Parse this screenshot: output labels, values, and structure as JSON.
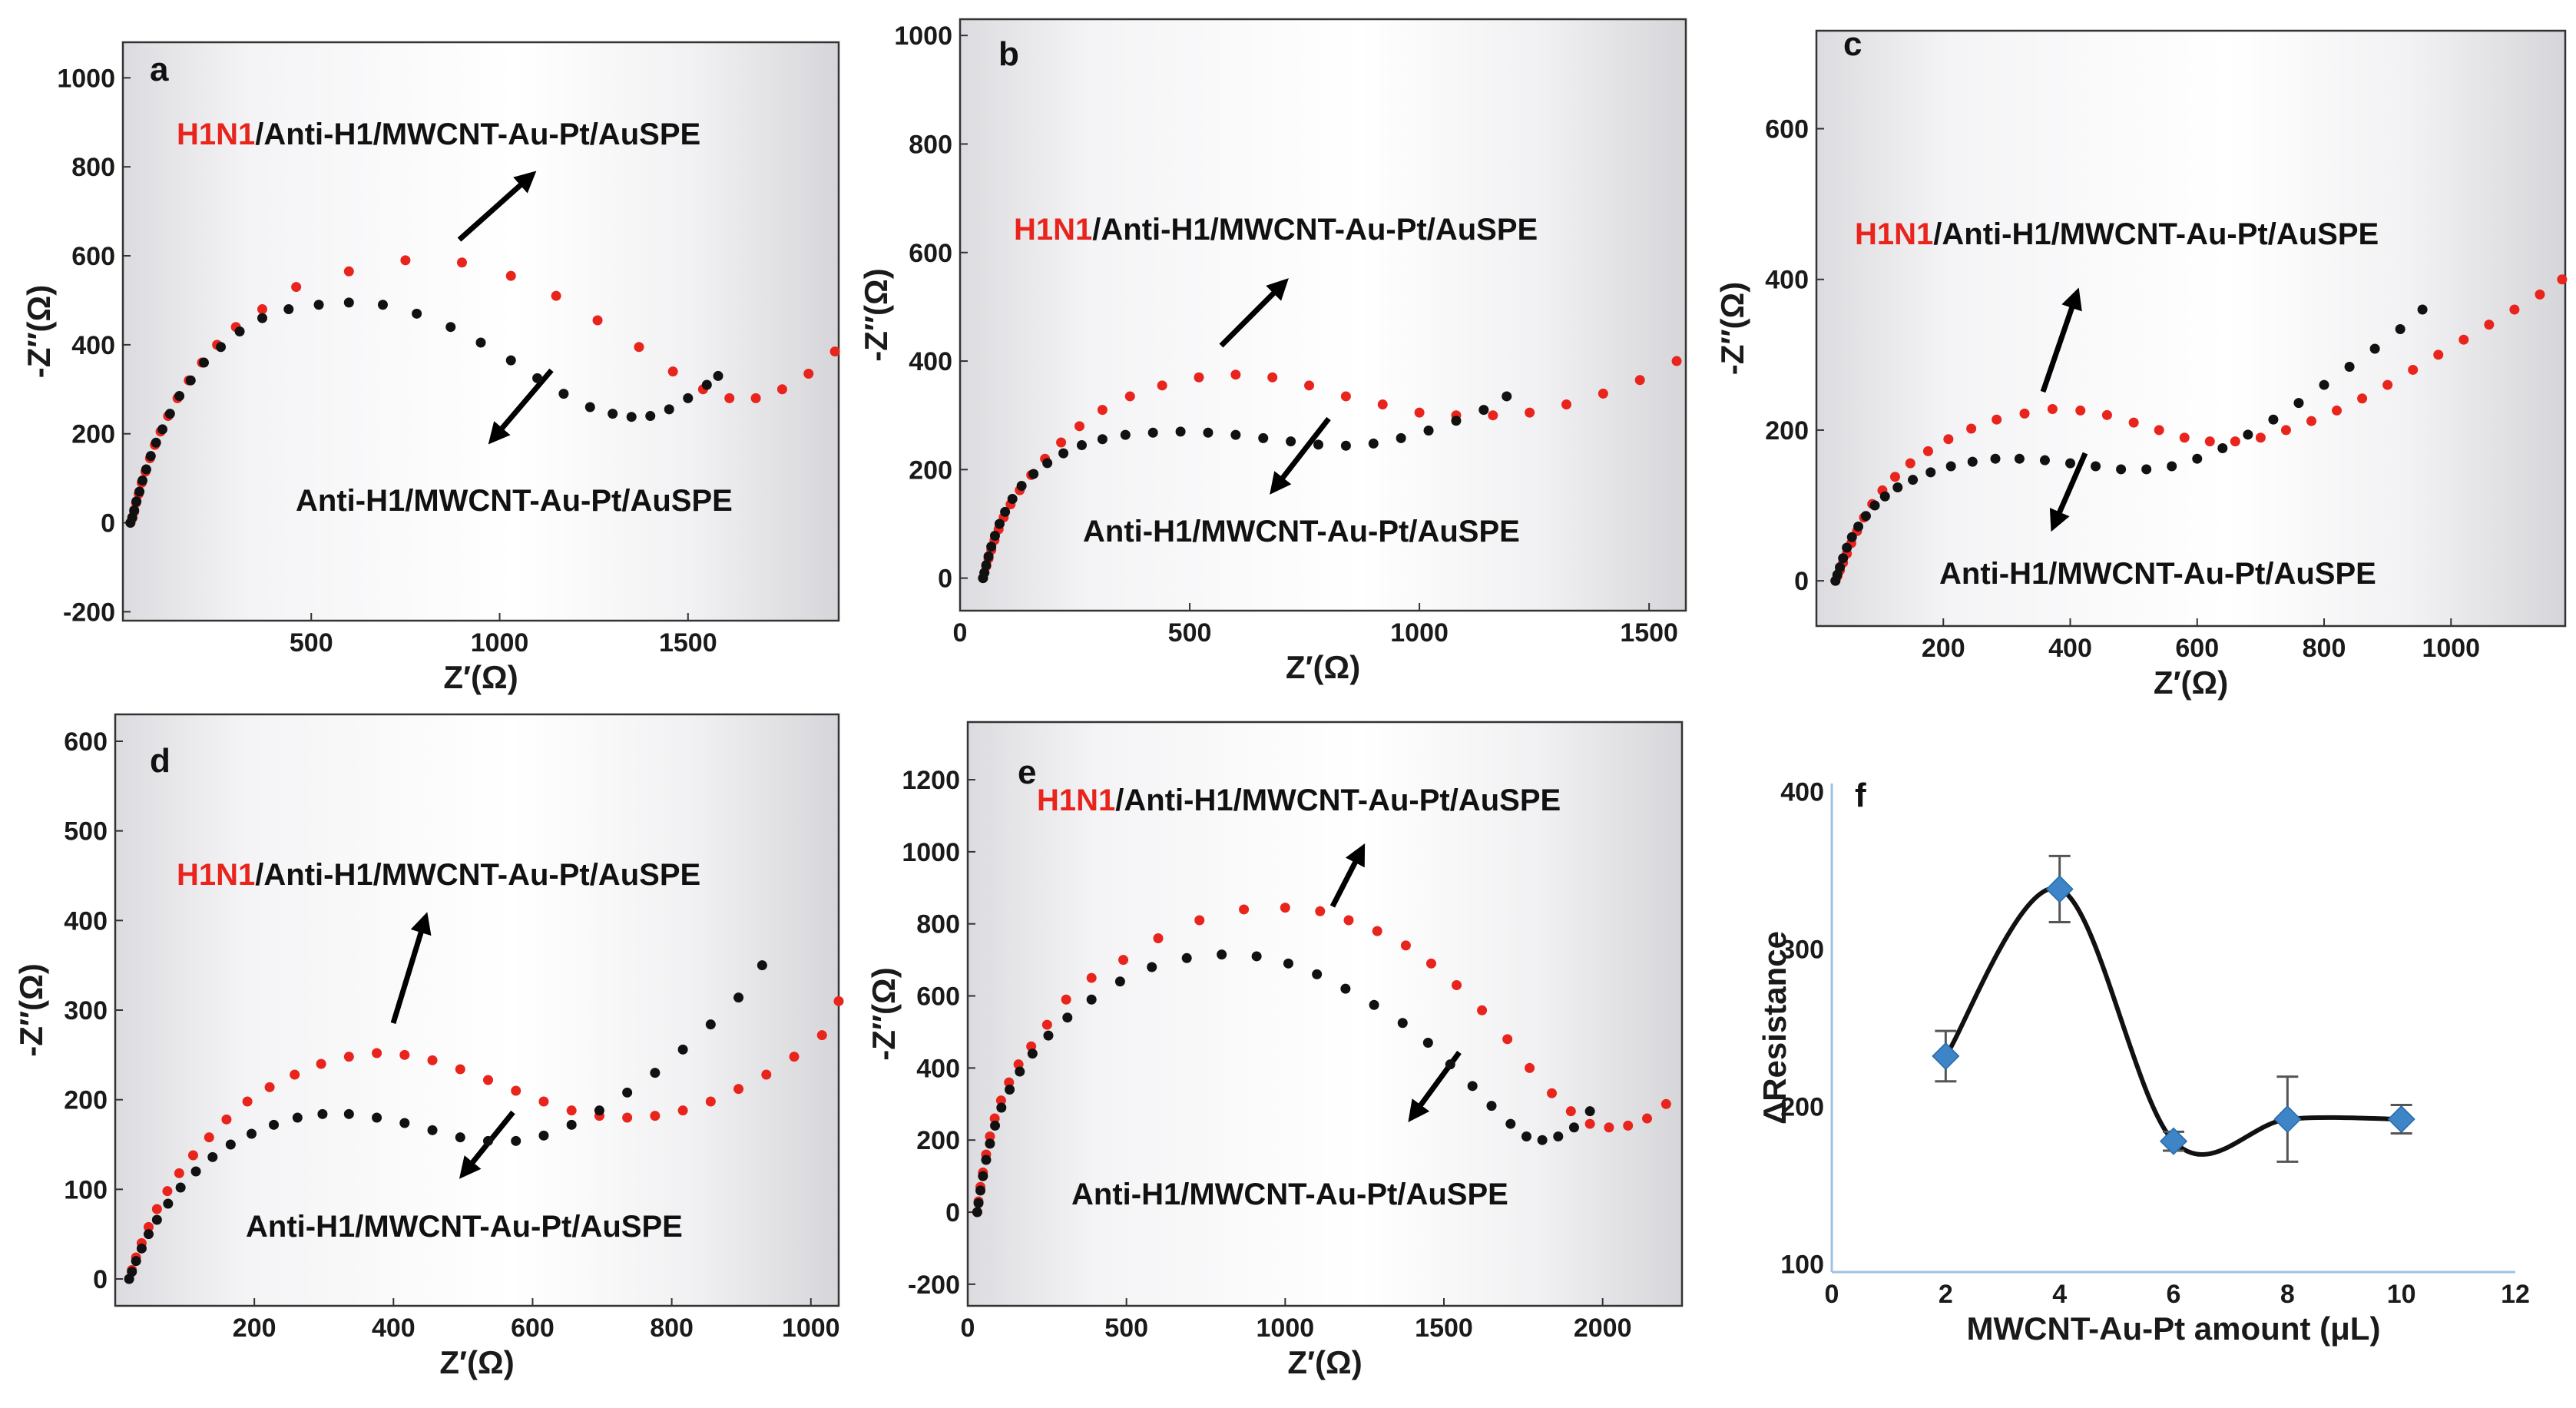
{
  "chart_data": [
    {
      "id": "a",
      "type": "scatter",
      "panel_label": "a",
      "xlabel": "Z′(Ω)",
      "ylabel": "-Z″(Ω)",
      "xlim": [
        0,
        1900
      ],
      "ylim": [
        -220,
        1080
      ],
      "xticks": [
        500,
        1000,
        1500
      ],
      "yticks": [
        -200,
        0,
        200,
        400,
        600,
        800,
        1000
      ],
      "annotations": [
        {
          "prefix": "H1N1",
          "suffix": "/Anti-H1/MWCNT-Au-Pt/AuSPE"
        },
        {
          "prefix": "",
          "suffix": "Anti-H1/MWCNT-Au-Pt/AuSPE"
        }
      ],
      "series": [
        {
          "name": "H1N1/Anti-H1/MWCNT-Au-Pt/AuSPE",
          "color": "#e8241c",
          "x": [
            20,
            25,
            30,
            35,
            42,
            50,
            60,
            72,
            85,
            100,
            120,
            145,
            175,
            210,
            250,
            300,
            370,
            460,
            600,
            750,
            900,
            1030,
            1150,
            1260,
            1370,
            1460,
            1540,
            1610,
            1680,
            1750,
            1820,
            1890
          ],
          "y": [
            0,
            10,
            25,
            45,
            65,
            90,
            115,
            145,
            175,
            205,
            240,
            280,
            320,
            360,
            400,
            440,
            480,
            530,
            565,
            590,
            585,
            555,
            510,
            455,
            395,
            340,
            300,
            280,
            280,
            300,
            335,
            385
          ]
        },
        {
          "name": "Anti-H1/MWCNT-Au-Pt/AuSPE",
          "color": "#111111",
          "x": [
            20,
            25,
            30,
            36,
            44,
            52,
            62,
            74,
            88,
            105,
            125,
            150,
            180,
            215,
            260,
            310,
            370,
            440,
            520,
            600,
            690,
            780,
            870,
            950,
            1030,
            1100,
            1170,
            1240,
            1300,
            1350,
            1400,
            1450,
            1500,
            1550,
            1580
          ],
          "y": [
            0,
            12,
            28,
            48,
            70,
            95,
            120,
            150,
            180,
            210,
            245,
            285,
            320,
            360,
            395,
            430,
            460,
            480,
            490,
            495,
            490,
            470,
            440,
            405,
            365,
            325,
            290,
            260,
            245,
            238,
            240,
            255,
            280,
            310,
            330
          ]
        }
      ]
    },
    {
      "id": "b",
      "type": "scatter",
      "panel_label": "b",
      "xlabel": "Z′(Ω)",
      "ylabel": "-Z″(Ω)",
      "xlim": [
        0,
        1580
      ],
      "ylim": [
        -60,
        1030
      ],
      "xticks": [
        0,
        500,
        1000,
        1500
      ],
      "yticks": [
        0,
        200,
        400,
        600,
        800,
        1000
      ],
      "annotations": [
        {
          "prefix": "H1N1",
          "suffix": "/Anti-H1/MWCNT-Au-Pt/AuSPE"
        },
        {
          "prefix": "",
          "suffix": "Anti-H1/MWCNT-Au-Pt/AuSPE"
        }
      ],
      "series": [
        {
          "name": "H1N1/Anti-H1/MWCNT-Au-Pt/AuSPE",
          "color": "#e8241c",
          "x": [
            50,
            53,
            57,
            62,
            68,
            75,
            84,
            95,
            110,
            130,
            155,
            185,
            220,
            260,
            310,
            370,
            440,
            520,
            600,
            680,
            760,
            840,
            920,
            1000,
            1080,
            1160,
            1240,
            1320,
            1400,
            1480,
            1560
          ],
          "y": [
            0,
            10,
            22,
            36,
            52,
            70,
            90,
            112,
            136,
            162,
            190,
            220,
            250,
            280,
            310,
            335,
            355,
            370,
            375,
            370,
            355,
            335,
            320,
            305,
            300,
            300,
            305,
            320,
            340,
            365,
            400
          ]
        },
        {
          "name": "Anti-H1/MWCNT-Au-Pt/AuSPE",
          "color": "#111111",
          "x": [
            50,
            53,
            57,
            62,
            68,
            76,
            86,
            98,
            114,
            134,
            160,
            190,
            225,
            265,
            310,
            360,
            420,
            480,
            540,
            600,
            660,
            720,
            780,
            840,
            900,
            960,
            1020,
            1080,
            1140,
            1190
          ],
          "y": [
            0,
            10,
            24,
            40,
            58,
            78,
            100,
            122,
            146,
            170,
            192,
            212,
            230,
            245,
            256,
            264,
            268,
            270,
            268,
            264,
            258,
            252,
            246,
            244,
            248,
            258,
            272,
            290,
            310,
            335
          ]
        }
      ]
    },
    {
      "id": "c",
      "type": "scatter",
      "panel_label": "c",
      "xlabel": "Z′(Ω)",
      "ylabel": "-Z″(Ω)",
      "xlim": [
        0,
        1180
      ],
      "ylim": [
        -60,
        730
      ],
      "xticks": [
        200,
        400,
        600,
        800,
        1000
      ],
      "yticks": [
        0,
        200,
        400,
        600
      ],
      "annotations": [
        {
          "prefix": "H1N1",
          "suffix": "/Anti-H1/MWCNT-Au-Pt/AuSPE"
        },
        {
          "prefix": "",
          "suffix": "Anti-H1/MWCNT-Au-Pt/AuSPE"
        }
      ],
      "series": [
        {
          "name": "H1N1/Anti-H1/MWCNT-Au-Pt/AuSPE",
          "color": "#e8241c",
          "x": [
            30,
            33,
            37,
            42,
            48,
            55,
            64,
            75,
            88,
            104,
            124,
            148,
            176,
            208,
            244,
            284,
            328,
            372,
            416,
            458,
            500,
            540,
            580,
            620,
            660,
            700,
            740,
            780,
            820,
            860,
            900,
            940,
            980,
            1020,
            1060,
            1100,
            1140,
            1175
          ],
          "y": [
            0,
            6,
            14,
            24,
            36,
            50,
            66,
            84,
            102,
            120,
            138,
            156,
            172,
            188,
            202,
            214,
            222,
            228,
            226,
            220,
            210,
            200,
            190,
            185,
            185,
            190,
            200,
            212,
            226,
            242,
            260,
            280,
            300,
            320,
            340,
            360,
            380,
            400
          ]
        },
        {
          "name": "Anti-H1/MWCNT-Au-Pt/AuSPE",
          "color": "#111111",
          "x": [
            30,
            33,
            37,
            42,
            48,
            56,
            66,
            78,
            92,
            108,
            128,
            152,
            180,
            212,
            246,
            282,
            320,
            360,
            400,
            440,
            480,
            520,
            560,
            600,
            640,
            680,
            720,
            760,
            800,
            840,
            880,
            920,
            955
          ],
          "y": [
            0,
            8,
            18,
            30,
            44,
            58,
            72,
            86,
            100,
            112,
            124,
            134,
            144,
            152,
            158,
            162,
            162,
            160,
            156,
            152,
            148,
            148,
            152,
            162,
            176,
            194,
            214,
            236,
            260,
            284,
            308,
            334,
            360
          ]
        }
      ]
    },
    {
      "id": "d",
      "type": "scatter",
      "panel_label": "d",
      "xlabel": "Z′(Ω)",
      "ylabel": "-Z″(Ω)",
      "xlim": [
        0,
        1040
      ],
      "ylim": [
        -30,
        630
      ],
      "xticks": [
        200,
        400,
        600,
        800,
        1000
      ],
      "yticks": [
        0,
        100,
        200,
        300,
        400,
        500,
        600
      ],
      "annotations": [
        {
          "prefix": "H1N1",
          "suffix": "/Anti-H1/MWCNT-Au-Pt/AuSPE"
        },
        {
          "prefix": "",
          "suffix": "Anti-H1/MWCNT-Au-Pt/AuSPE"
        }
      ],
      "series": [
        {
          "name": "H1N1/Anti-H1/MWCNT-Au-Pt/AuSPE",
          "color": "#e8241c",
          "x": [
            20,
            24,
            30,
            38,
            48,
            60,
            75,
            92,
            112,
            135,
            160,
            190,
            222,
            258,
            296,
            336,
            376,
            416,
            456,
            496,
            536,
            576,
            616,
            656,
            696,
            736,
            776,
            816,
            856,
            896,
            936,
            976,
            1016,
            1040
          ],
          "y": [
            0,
            10,
            24,
            40,
            58,
            78,
            98,
            118,
            138,
            158,
            178,
            198,
            214,
            228,
            240,
            248,
            252,
            250,
            244,
            234,
            222,
            210,
            198,
            188,
            182,
            180,
            182,
            188,
            198,
            212,
            228,
            248,
            272,
            310
          ]
        },
        {
          "name": "Anti-H1/MWCNT-Au-Pt/AuSPE",
          "color": "#111111",
          "x": [
            20,
            24,
            30,
            38,
            48,
            60,
            76,
            94,
            116,
            140,
            166,
            196,
            228,
            262,
            298,
            336,
            376,
            416,
            456,
            496,
            536,
            576,
            616,
            656,
            696,
            736,
            776,
            816,
            856,
            896,
            930
          ],
          "y": [
            0,
            8,
            20,
            34,
            50,
            66,
            84,
            102,
            120,
            136,
            150,
            162,
            172,
            180,
            184,
            184,
            180,
            174,
            166,
            158,
            154,
            154,
            160,
            172,
            188,
            208,
            230,
            256,
            284,
            314,
            350
          ]
        }
      ]
    },
    {
      "id": "e",
      "type": "scatter",
      "panel_label": "e",
      "xlabel": "Z′(Ω)",
      "ylabel": "-Z″(Ω)",
      "xlim": [
        0,
        2250
      ],
      "ylim": [
        -260,
        1360
      ],
      "xticks": [
        0,
        500,
        1000,
        1500,
        2000
      ],
      "yticks": [
        -200,
        0,
        200,
        400,
        600,
        800,
        1000,
        1200
      ],
      "annotations": [
        {
          "prefix": "H1N1",
          "suffix": "/Anti-H1/MWCNT-Au-Pt/AuSPE"
        },
        {
          "prefix": "",
          "suffix": "Anti-H1/MWCNT-Au-Pt/AuSPE"
        }
      ],
      "series": [
        {
          "name": "H1N1/Anti-H1/MWCNT-Au-Pt/AuSPE",
          "color": "#e8241c",
          "x": [
            30,
            34,
            40,
            48,
            58,
            70,
            85,
            105,
            130,
            160,
            200,
            250,
            310,
            390,
            490,
            600,
            730,
            870,
            1000,
            1110,
            1200,
            1290,
            1380,
            1460,
            1540,
            1620,
            1700,
            1770,
            1840,
            1900,
            1960,
            2020,
            2080,
            2140,
            2200
          ],
          "y": [
            0,
            30,
            70,
            110,
            160,
            210,
            260,
            310,
            360,
            410,
            460,
            520,
            590,
            650,
            700,
            760,
            810,
            840,
            845,
            835,
            810,
            780,
            740,
            690,
            630,
            560,
            480,
            400,
            330,
            280,
            245,
            235,
            240,
            260,
            300
          ]
        },
        {
          "name": "Anti-H1/MWCNT-Au-Pt/AuSPE",
          "color": "#111111",
          "x": [
            30,
            34,
            40,
            48,
            58,
            70,
            86,
            106,
            132,
            164,
            204,
            254,
            314,
            390,
            480,
            580,
            690,
            800,
            910,
            1010,
            1100,
            1190,
            1280,
            1370,
            1450,
            1520,
            1590,
            1650,
            1710,
            1760,
            1810,
            1860,
            1910,
            1960
          ],
          "y": [
            0,
            25,
            60,
            100,
            145,
            190,
            240,
            290,
            340,
            390,
            440,
            490,
            540,
            590,
            640,
            680,
            705,
            715,
            710,
            690,
            660,
            620,
            575,
            525,
            470,
            410,
            350,
            295,
            245,
            210,
            200,
            210,
            235,
            280
          ]
        }
      ]
    },
    {
      "id": "f",
      "type": "line",
      "panel_label": "f",
      "xlabel": "MWCNT-Au-Pt amount (μL)",
      "ylabel": "ΔResistance",
      "xlim": [
        0,
        12
      ],
      "ylim": [
        95,
        405
      ],
      "xticks": [
        0,
        2,
        4,
        6,
        8,
        10,
        12
      ],
      "yticks": [
        100,
        200,
        300,
        400
      ],
      "series": [
        {
          "name": "ΔResistance",
          "color": "#3d85c6",
          "x": [
            2,
            4,
            6,
            8,
            10
          ],
          "y": [
            232,
            338,
            178,
            192,
            192
          ],
          "error": [
            16,
            21,
            6,
            27,
            9
          ]
        }
      ]
    }
  ]
}
